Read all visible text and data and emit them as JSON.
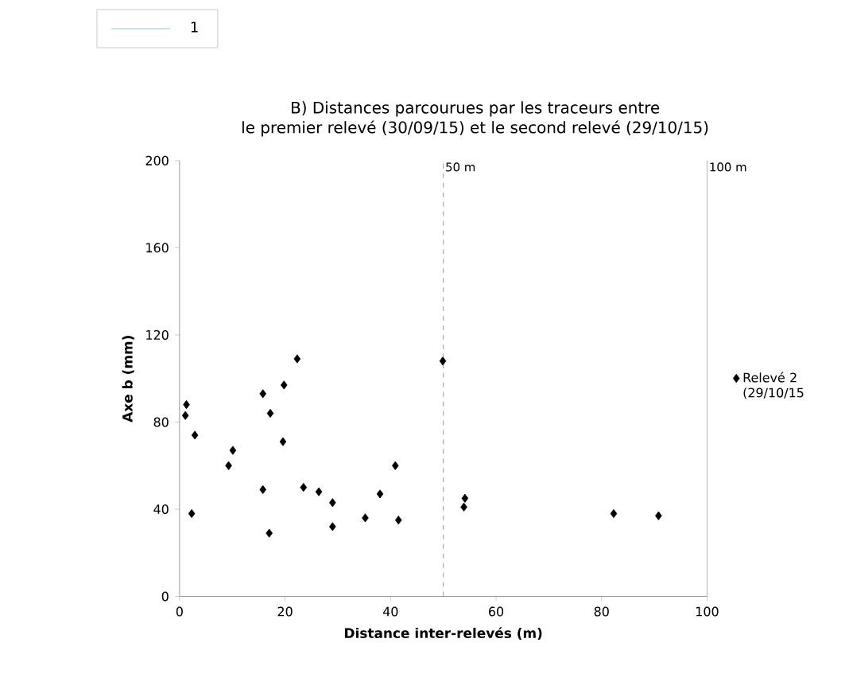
{
  "chart_data": {
    "type": "scatter",
    "title": "B) Distances parcourues par les traceurs entre\nle premier relevé (30/09/15) et le second relevé (29/10/15)",
    "xlabel": "Distance inter-relevés (m)",
    "ylabel": "Axe b (mm)",
    "xlim": [
      0,
      100
    ],
    "ylim": [
      0,
      200
    ],
    "xticks": [
      0,
      20,
      40,
      60,
      80,
      100
    ],
    "yticks": [
      0,
      40,
      80,
      120,
      160,
      200
    ],
    "marker": "diamond",
    "legend": "right",
    "grid": false,
    "ref_lines": [
      {
        "axis": "x",
        "value": 50,
        "label": "50 m",
        "line_style": "dashed",
        "color": "#808080"
      },
      {
        "axis": "x",
        "value": 100,
        "label": "100 m",
        "line_style": "solid",
        "color": "#a0a0a0"
      }
    ],
    "series": [
      {
        "name": "Relevé 2 (29/10/15",
        "color": "#000000",
        "x": [
          1.3,
          1.1,
          2.9,
          2.3,
          9.3,
          10.1,
          15.8,
          15.8,
          17.2,
          17.0,
          19.8,
          19.6,
          22.3,
          23.5,
          26.4,
          29.0,
          29.0,
          35.2,
          38.0,
          40.9,
          41.5,
          49.9,
          54.1,
          53.9,
          82.3,
          90.8
        ],
        "values": [
          88,
          83,
          74,
          38,
          60,
          67,
          93,
          49,
          84,
          29,
          97,
          71,
          109,
          50,
          48,
          43,
          32,
          36,
          47,
          60,
          35,
          108,
          45,
          41,
          38,
          37
        ]
      },
      {
        "name": "1",
        "type": "line",
        "color": "#5fc8c0"
      }
    ]
  }
}
